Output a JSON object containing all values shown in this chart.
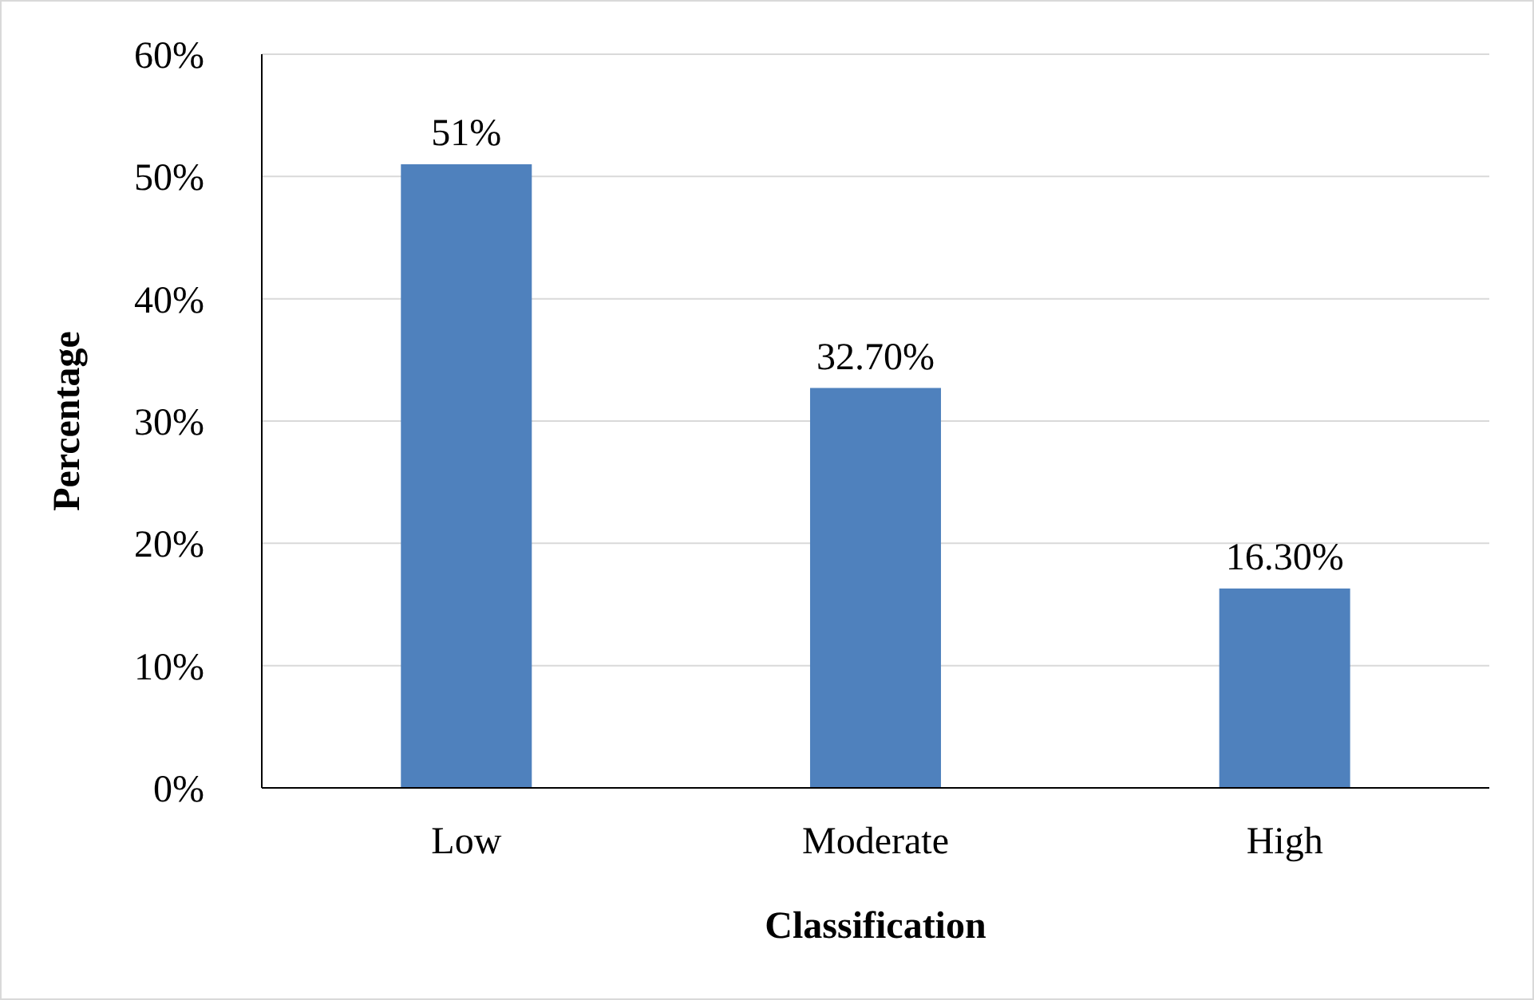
{
  "chart_data": {
    "type": "bar",
    "xlabel": "Classification",
    "ylabel": "Percentage",
    "categories": [
      "Low",
      "Moderate",
      "High"
    ],
    "values": [
      51,
      32.7,
      16.3
    ],
    "value_labels": [
      "51%",
      "32.70%",
      "16.30%"
    ],
    "color": "#4f81bd",
    "ylim": [
      0,
      60
    ],
    "yticks": [
      {
        "value": 0,
        "label": "0%"
      },
      {
        "value": 10,
        "label": "10%"
      },
      {
        "value": 20,
        "label": "20%"
      },
      {
        "value": 30,
        "label": "30%"
      },
      {
        "value": 40,
        "label": "40%"
      },
      {
        "value": 50,
        "label": "50%"
      },
      {
        "value": 60,
        "label": "60%"
      }
    ],
    "grid": "y",
    "legend": false
  }
}
